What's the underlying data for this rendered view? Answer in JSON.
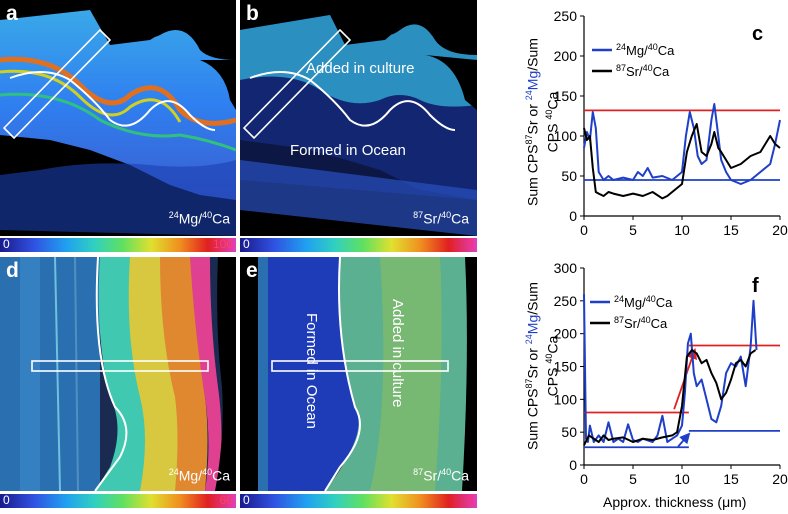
{
  "panels": {
    "a": {
      "letter": "a",
      "ion_label": {
        "num_iso": "24",
        "num_el": "Mg",
        "den_iso": "40",
        "den_el": "Ca"
      },
      "scale_min": "0",
      "scale_max": "100"
    },
    "b": {
      "letter": "b",
      "ion_label": {
        "num_iso": "87",
        "num_el": "Sr",
        "den_iso": "40",
        "den_el": "Ca"
      },
      "scale_min": "0",
      "scale_max": "5",
      "label_top": "Added in culture",
      "label_bottom": "Formed in Ocean"
    },
    "d": {
      "letter": "d",
      "ion_label": {
        "num_iso": "24",
        "num_el": "Mg",
        "den_iso": "40",
        "den_el": "Ca"
      },
      "scale_min": "0",
      "scale_max": "60"
    },
    "e": {
      "letter": "e",
      "ion_label": {
        "num_iso": "87",
        "num_el": "Sr",
        "den_iso": "40",
        "den_el": "Ca"
      },
      "scale_min": "0",
      "scale_max": "5",
      "label_left": "Formed in Ocean",
      "label_right": "Added in culture"
    }
  },
  "colors": {
    "blue_series": "#1f3fc8",
    "black_series": "#000000",
    "red_line": "#e02020",
    "blue_line": "#1f3fc8"
  },
  "ytitle": {
    "line1_prefix": "Sum CPS",
    "line1_iso1": "87",
    "line1_el1": "Sr or ",
    "line1_iso2": "24",
    "line1_el2": "Mg",
    "line1_suffix": "/Sum",
    "line2_prefix": "CPS ",
    "line2_iso": "40",
    "line2_el": "Ca"
  },
  "xtitle": {
    "text_before": "Approx. thickness (",
    "mu": "μ",
    "text_after": "m)"
  },
  "chart_data": [
    {
      "id": "c",
      "letter": "c",
      "type": "line",
      "xlim": [
        0,
        20
      ],
      "ylim": [
        0,
        250
      ],
      "xticks": [
        "0",
        "5",
        "10",
        "15",
        "20"
      ],
      "yticks": [
        "0",
        "50",
        "100",
        "150",
        "200",
        "250"
      ],
      "legend_position": "top-right",
      "hlines": [
        {
          "y": 132,
          "color": "#e02020"
        },
        {
          "y": 45,
          "color": "#1f3fc8"
        }
      ],
      "series": [
        {
          "name_iso1": "24",
          "name_el1": "Mg/",
          "name_iso2": "40",
          "name_el2": "Ca",
          "color": "#1f3fc8",
          "x": [
            0,
            0.3,
            0.6,
            0.9,
            1.2,
            1.5,
            2.0,
            2.5,
            3.0,
            4.0,
            5.0,
            5.5,
            6.0,
            6.5,
            7.0,
            8.0,
            9.0,
            10.0,
            10.4,
            10.8,
            11.2,
            11.6,
            12.0,
            12.5,
            13.0,
            13.3,
            13.6,
            14.0,
            14.5,
            15.0,
            16.0,
            17.0,
            18.0,
            19.0,
            19.5,
            20.0
          ],
          "y": [
            85,
            105,
            95,
            130,
            110,
            55,
            45,
            50,
            45,
            48,
            45,
            55,
            50,
            60,
            48,
            50,
            45,
            55,
            100,
            130,
            110,
            75,
            65,
            70,
            120,
            140,
            110,
            70,
            55,
            45,
            40,
            45,
            55,
            65,
            90,
            120
          ]
        },
        {
          "name_iso1": "87",
          "name_el1": "Sr/",
          "name_iso2": "40",
          "name_el2": "Ca",
          "color": "#000000",
          "x": [
            0,
            0.3,
            0.6,
            0.9,
            1.2,
            1.5,
            2.0,
            2.5,
            3.0,
            4.0,
            5.0,
            6.0,
            7.0,
            8.0,
            8.5,
            9.0,
            10.0,
            10.5,
            11.0,
            11.5,
            12.0,
            12.5,
            13.0,
            13.3,
            13.7,
            14.0,
            15.0,
            16.0,
            17.0,
            18.0,
            19.0,
            19.5,
            20.0
          ],
          "y": [
            110,
            95,
            100,
            60,
            30,
            28,
            25,
            30,
            28,
            25,
            28,
            25,
            30,
            22,
            25,
            30,
            40,
            80,
            100,
            115,
            80,
            75,
            90,
            105,
            85,
            80,
            60,
            65,
            75,
            80,
            100,
            90,
            85
          ]
        }
      ]
    },
    {
      "id": "f",
      "letter": "f",
      "type": "line",
      "xlim": [
        0,
        20
      ],
      "ylim": [
        0,
        300
      ],
      "xticks": [
        "0",
        "5",
        "10",
        "15",
        "20"
      ],
      "yticks": [
        "0",
        "50",
        "100",
        "150",
        "200",
        "250",
        "300"
      ],
      "xlabel_shown": true,
      "legend_position": "top-left",
      "hlines": [
        {
          "y": 80,
          "color": "#e02020",
          "x_from": 0,
          "x_to": 10.7
        },
        {
          "y": 182,
          "color": "#e02020",
          "x_from": 10.7,
          "x_to": 20
        },
        {
          "y": 27,
          "color": "#1f3fc8",
          "x_from": 0,
          "x_to": 10.7
        },
        {
          "y": 52,
          "color": "#1f3fc8",
          "x_from": 10.7,
          "x_to": 20
        }
      ],
      "arrows": [
        {
          "x1": 9.2,
          "y1": 85,
          "x2": 11.3,
          "y2": 175,
          "color": "#e02020"
        },
        {
          "x1": 9.6,
          "y1": 28,
          "x2": 10.7,
          "y2": 47,
          "color": "#1f3fc8"
        }
      ],
      "series": [
        {
          "name_iso1": "24",
          "name_el1": "Mg/",
          "name_iso2": "40",
          "name_el2": "Ca",
          "color": "#1f3fc8",
          "x": [
            0,
            0.2,
            0.4,
            0.6,
            1.0,
            1.5,
            2.0,
            2.5,
            3.0,
            3.5,
            4.0,
            4.5,
            5.0,
            5.5,
            6.0,
            7.0,
            7.5,
            8.0,
            8.5,
            9.0,
            9.5,
            10.0,
            10.3,
            10.6,
            10.9,
            11.2,
            11.5,
            12.0,
            12.5,
            13.0,
            13.5,
            14.0,
            14.5,
            15.0,
            15.5,
            16.0,
            16.5,
            17.0,
            17.3,
            17.6
          ],
          "y": [
            260,
            40,
            35,
            60,
            35,
            45,
            35,
            65,
            35,
            40,
            35,
            62,
            38,
            35,
            40,
            35,
            45,
            75,
            35,
            40,
            45,
            60,
            110,
            185,
            200,
            140,
            120,
            130,
            100,
            70,
            65,
            90,
            140,
            155,
            150,
            165,
            120,
            180,
            250,
            175
          ]
        },
        {
          "name_iso1": "87",
          "name_el1": "Sr/",
          "name_iso2": "40",
          "name_el2": "Ca",
          "color": "#000000",
          "x": [
            0,
            0.5,
            1.0,
            1.5,
            2.0,
            2.5,
            3.0,
            4.0,
            5.0,
            6.0,
            7.0,
            8.0,
            9.0,
            9.5,
            10.0,
            10.5,
            11.0,
            11.5,
            12.0,
            12.5,
            13.0,
            13.5,
            14.0,
            14.5,
            15.0,
            15.5,
            16.0,
            16.5,
            17.0,
            17.5
          ],
          "y": [
            30,
            45,
            40,
            35,
            45,
            38,
            40,
            42,
            35,
            40,
            38,
            42,
            45,
            50,
            90,
            165,
            175,
            170,
            155,
            160,
            140,
            125,
            100,
            110,
            130,
            155,
            160,
            150,
            170,
            175
          ]
        }
      ]
    }
  ]
}
